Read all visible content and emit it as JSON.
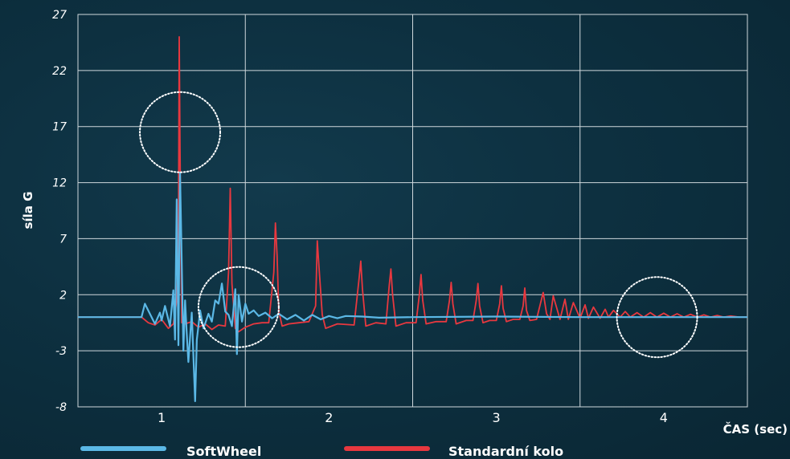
{
  "chart_data": {
    "type": "line",
    "title": "",
    "xlabel": "ČAS (sec)",
    "ylabel": "síla G",
    "xlim": [
      0.5,
      4.5
    ],
    "ylim": [
      -8,
      27
    ],
    "y_ticks": [
      "27",
      "22",
      "17",
      "12",
      "7",
      "2",
      "-3",
      "-8"
    ],
    "x_ticks": [
      "1",
      "2",
      "3",
      "4"
    ],
    "grid": true,
    "legend_position": "bottom",
    "series": [
      {
        "name": "SoftWheel",
        "color": "#5bb8e6",
        "x": [
          0.5,
          0.88,
          0.9,
          0.93,
          0.96,
          0.99,
          1.0,
          1.02,
          1.05,
          1.07,
          1.08,
          1.09,
          1.1,
          1.11,
          1.12,
          1.13,
          1.14,
          1.15,
          1.16,
          1.18,
          1.2,
          1.21,
          1.22,
          1.23,
          1.25,
          1.28,
          1.3,
          1.32,
          1.34,
          1.36,
          1.38,
          1.4,
          1.42,
          1.44,
          1.45,
          1.46,
          1.48,
          1.5,
          1.52,
          1.55,
          1.58,
          1.62,
          1.66,
          1.7,
          1.75,
          1.8,
          1.85,
          1.9,
          1.95,
          2.0,
          2.05,
          2.1,
          2.2,
          2.3,
          2.5,
          3.0,
          3.5,
          4.0,
          4.5
        ],
        "values": [
          0,
          0,
          1.2,
          0.3,
          -0.6,
          0.4,
          -0.3,
          1.0,
          -0.8,
          2.4,
          -2.0,
          10.5,
          -2.5,
          12.9,
          5.0,
          -3.0,
          1.5,
          -1.5,
          -4.0,
          0.4,
          -7.5,
          -2.0,
          -0.8,
          0.6,
          -1.0,
          0.3,
          -0.4,
          1.5,
          1.2,
          3.0,
          0.5,
          0.2,
          -0.8,
          2.5,
          -3.3,
          2.0,
          -0.4,
          1.2,
          0.3,
          0.6,
          0.1,
          0.4,
          -0.1,
          0.3,
          -0.2,
          0.2,
          -0.3,
          0.2,
          -0.2,
          0.1,
          -0.1,
          0.1,
          0.05,
          -0.05,
          0.0,
          0.05,
          0.0,
          0.0,
          0.0
        ]
      },
      {
        "name": "Standardní kolo",
        "color": "#e8383f",
        "x": [
          0.5,
          0.88,
          0.92,
          0.96,
          1.0,
          1.04,
          1.07,
          1.09,
          1.1,
          1.105,
          1.11,
          1.12,
          1.14,
          1.18,
          1.22,
          1.26,
          1.3,
          1.34,
          1.38,
          1.4,
          1.41,
          1.42,
          1.44,
          1.46,
          1.5,
          1.55,
          1.6,
          1.64,
          1.67,
          1.68,
          1.69,
          1.7,
          1.72,
          1.76,
          1.82,
          1.88,
          1.92,
          1.93,
          1.94,
          1.96,
          1.98,
          2.05,
          2.15,
          2.18,
          2.19,
          2.2,
          2.22,
          2.28,
          2.34,
          2.36,
          2.37,
          2.38,
          2.4,
          2.46,
          2.52,
          2.54,
          2.55,
          2.56,
          2.58,
          2.64,
          2.7,
          2.72,
          2.73,
          2.74,
          2.76,
          2.82,
          2.86,
          2.88,
          2.89,
          2.9,
          2.92,
          2.96,
          3.0,
          3.02,
          3.03,
          3.04,
          3.06,
          3.1,
          3.14,
          3.16,
          3.17,
          3.18,
          3.2,
          3.24,
          3.28,
          3.3,
          3.32,
          3.34,
          3.38,
          3.41,
          3.43,
          3.46,
          3.5,
          3.53,
          3.55,
          3.58,
          3.62,
          3.65,
          3.67,
          3.7,
          3.74,
          3.77,
          3.8,
          3.84,
          3.88,
          3.92,
          3.96,
          4.0,
          4.04,
          4.08,
          4.12,
          4.16,
          4.2,
          4.24,
          4.28,
          4.32,
          4.36,
          4.4,
          4.45,
          4.5
        ],
        "values": [
          0,
          0,
          -0.5,
          -0.7,
          -0.2,
          -1.0,
          -0.6,
          1.5,
          6.0,
          25.0,
          15.0,
          -0.5,
          -0.6,
          -0.4,
          -0.9,
          -0.6,
          -1.1,
          -0.7,
          -0.8,
          4.0,
          11.5,
          3.0,
          -1.0,
          -1.3,
          -0.9,
          -0.6,
          -0.5,
          -0.5,
          4.0,
          8.4,
          5.5,
          0.5,
          -0.8,
          -0.6,
          -0.5,
          -0.4,
          1.0,
          6.8,
          4.5,
          0.2,
          -1.0,
          -0.6,
          -0.7,
          3.5,
          5.0,
          2.5,
          -0.8,
          -0.5,
          -0.6,
          2.8,
          4.3,
          2.0,
          -0.8,
          -0.5,
          -0.5,
          2.0,
          3.8,
          1.5,
          -0.6,
          -0.4,
          -0.4,
          1.5,
          3.1,
          1.2,
          -0.6,
          -0.3,
          -0.3,
          1.5,
          3.0,
          1.0,
          -0.5,
          -0.3,
          -0.3,
          1.2,
          2.8,
          0.8,
          -0.4,
          -0.2,
          -0.2,
          1.0,
          2.6,
          0.6,
          -0.3,
          -0.2,
          2.2,
          0.3,
          -0.2,
          1.9,
          -0.2,
          1.6,
          -0.2,
          1.3,
          -0.1,
          1.1,
          -0.1,
          0.9,
          -0.1,
          0.7,
          0.0,
          0.6,
          0.0,
          0.5,
          0.0,
          0.4,
          0.0,
          0.4,
          0.0,
          0.35,
          0.0,
          0.3,
          0.0,
          0.25,
          0.0,
          0.2,
          0.0,
          0.15,
          0.0,
          0.1,
          0.0,
          0.0
        ]
      }
    ],
    "annotations": [
      {
        "shape": "dotted-circle",
        "x": 1.11,
        "y": 16.5,
        "radius_x_units": 0.24
      },
      {
        "shape": "dotted-circle",
        "x": 1.46,
        "y": 0.9,
        "radius_x_units": 0.24
      },
      {
        "shape": "dotted-circle",
        "x": 3.96,
        "y": 0.0,
        "radius_x_units": 0.24
      }
    ]
  },
  "style": {
    "grid_color": "#cfd8dc",
    "axis_color": "#ffffff",
    "annotation_color": "#ffffff"
  }
}
